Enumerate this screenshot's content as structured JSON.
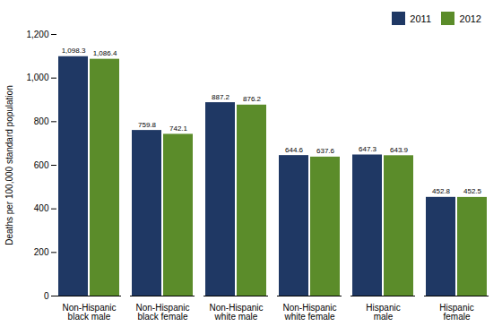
{
  "chart_data": {
    "type": "bar",
    "categories": [
      "Non-Hispanic\nblack male",
      "Non-Hispanic\nblack female",
      "Non-Hispanic\nwhite male",
      "Non-Hispanic\nwhite female",
      "Hispanic\nmale",
      "Hispanic\nfemale"
    ],
    "series": [
      {
        "name": "2011",
        "color": "#1f3864",
        "values": [
          1098.3,
          759.8,
          887.2,
          644.6,
          647.3,
          452.8
        ],
        "value_labels": [
          "1,098.3",
          "759.8",
          "887.2",
          "644.6",
          "647.3",
          "452.8"
        ]
      },
      {
        "name": "2012",
        "color": "#5b8c2a",
        "values": [
          1086.4,
          742.1,
          876.2,
          637.6,
          643.9,
          452.5
        ],
        "value_labels": [
          "1,086.4",
          "742.1",
          "876.2",
          "637.6",
          "643.9",
          "452.5"
        ]
      }
    ],
    "ylabel": "Deaths per 100,000 standard population",
    "ylim": [
      0,
      1200
    ],
    "yticks": [
      0,
      200,
      400,
      600,
      800,
      {
        "value": 1000,
        "label": "1,000"
      },
      {
        "value": 1200,
        "label": "1,200"
      }
    ],
    "legend": "upper right",
    "data_labels": true
  }
}
